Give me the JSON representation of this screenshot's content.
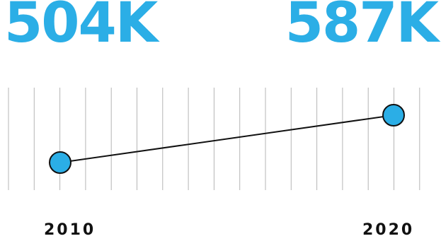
{
  "colors": {
    "accent": "#2BAEE6",
    "line": "#111111",
    "grid": "#b5b5b5"
  },
  "labels": {
    "start_value": "504K",
    "end_value": "587K",
    "start_year": "2010",
    "end_year": "2020"
  },
  "chart_data": {
    "type": "line",
    "title": "",
    "xlabel": "",
    "ylabel": "",
    "x": [
      2010,
      2020
    ],
    "series": [
      {
        "values": [
          504000,
          587000
        ]
      }
    ],
    "data_labels": [
      "504K",
      "587K"
    ],
    "tick_labels": [
      "2010",
      "2020"
    ],
    "grid": true,
    "legend": "none"
  }
}
